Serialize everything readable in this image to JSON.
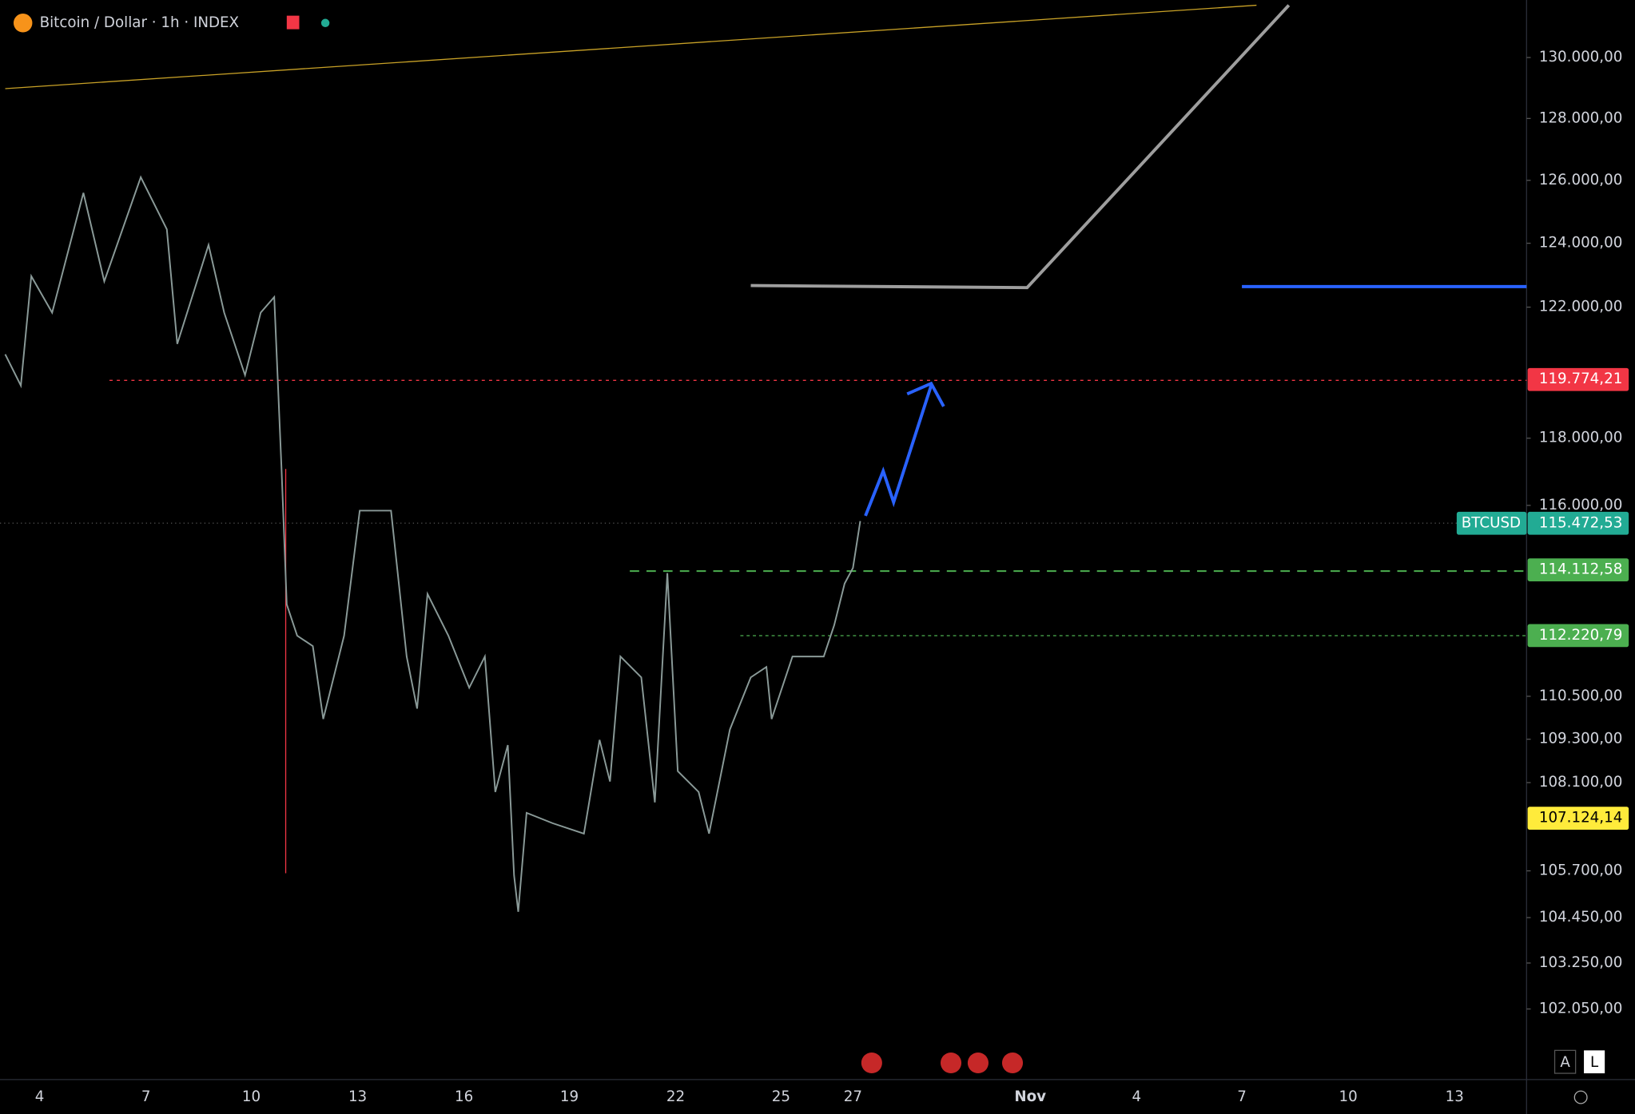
{
  "header": {
    "symbol": "Bitcoin / Dollar · 1h · INDEX"
  },
  "price_axis": {
    "log_scale": true,
    "ylim": [
      100260,
      131740
    ],
    "ticks": [
      {
        "value": 130000,
        "label": "130.000,00"
      },
      {
        "value": 128000,
        "label": "128.000,00"
      },
      {
        "value": 126000,
        "label": "126.000,00"
      },
      {
        "value": 124000,
        "label": "124.000,00"
      },
      {
        "value": 122000,
        "label": "122.000,00"
      },
      {
        "value": 118000,
        "label": "118.000,00"
      },
      {
        "value": 116000,
        "label": "116.000,00"
      },
      {
        "value": 110500,
        "label": "110.500,00"
      },
      {
        "value": 109300,
        "label": "109.300,00"
      },
      {
        "value": 108100,
        "label": "108.100,00"
      },
      {
        "value": 105700,
        "label": "105.700,00"
      },
      {
        "value": 104450,
        "label": "104.450,00"
      },
      {
        "value": 103250,
        "label": "103.250,00"
      },
      {
        "value": 102050,
        "label": "102.050,00"
      }
    ],
    "badges": [
      {
        "value": 119774.21,
        "label": "119.774,21",
        "color": "#f23645"
      },
      {
        "value": 115472.53,
        "label": "115.472,53",
        "color": "#22ab94",
        "name": "BTCUSD"
      },
      {
        "value": 114112.58,
        "label": "114.112,58",
        "color": "#4caf50"
      },
      {
        "value": 112220.79,
        "label": "112.220,79",
        "color": "#4caf50"
      },
      {
        "value": 107124.14,
        "label": "107.124,14",
        "color": "#ffeb3b"
      }
    ]
  },
  "time_axis": {
    "labels": [
      "4",
      "7",
      "10",
      "13",
      "16",
      "19",
      "22",
      "25",
      "27",
      "Nov",
      "4",
      "7",
      "10",
      "13"
    ]
  },
  "controls": {
    "auto": "A",
    "log": "L"
  }
}
